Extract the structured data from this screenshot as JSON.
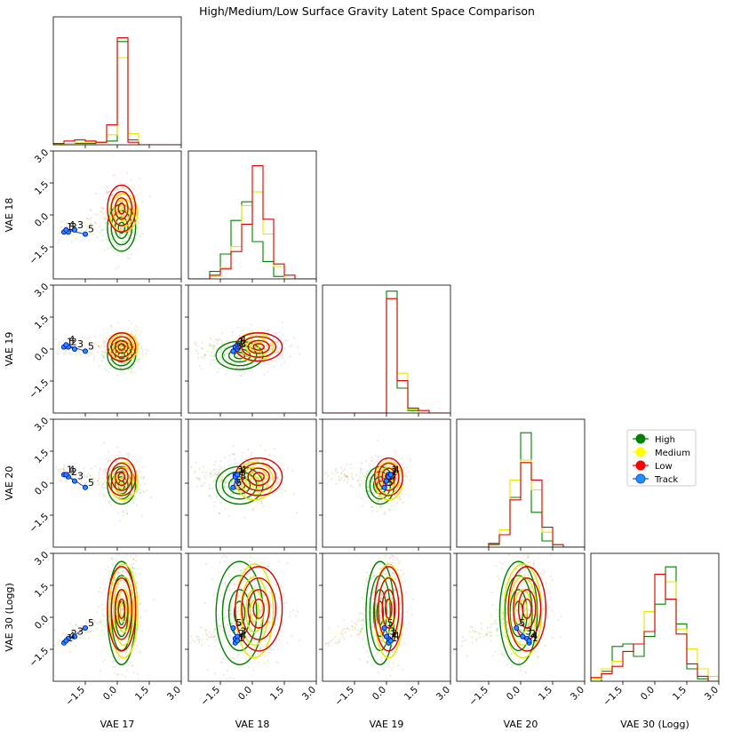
{
  "chart_data": {
    "type": "corner",
    "title": "High/Medium/Low Surface Gravity Latent Space Comparison",
    "variables": [
      "VAE 17",
      "VAE 18",
      "VAE 19",
      "VAE 20",
      "VAE 30 (Logg)"
    ],
    "axis_range": [
      -3,
      3
    ],
    "ticks": [
      -1.5,
      0.0,
      1.5,
      3.0
    ],
    "tick_labels": [
      "−1.5",
      "0.0",
      "1.5",
      "3.0"
    ],
    "y_ticks": [
      3.0,
      1.5,
      0.0,
      -1.5
    ],
    "y_tick_labels": [
      "3.0",
      "1.5",
      "0.0",
      "−1.5"
    ],
    "legend_position": "right, beside 4th row",
    "series": [
      {
        "name": "High",
        "color": "#008000"
      },
      {
        "name": "Medium",
        "color": "#ffff00"
      },
      {
        "name": "Low",
        "color": "#ff0000"
      },
      {
        "name": "Track",
        "color": "#1e90ff"
      }
    ],
    "cluster_centers": {
      "High": [
        0.2,
        -0.6,
        -0.3,
        -0.1,
        0.2
      ],
      "Medium": [
        0.3,
        0.1,
        0.1,
        0.1,
        0.3
      ],
      "Low": [
        0.2,
        0.3,
        0.1,
        0.3,
        0.4
      ]
    },
    "cluster_spreads": {
      "High": [
        0.3,
        0.5,
        0.3,
        0.4,
        1.1
      ],
      "Medium": [
        0.3,
        0.4,
        0.3,
        0.4,
        1.0
      ],
      "Low": [
        0.3,
        0.5,
        0.3,
        0.4,
        0.9
      ]
    },
    "track_points": {
      "labels": [
        "1",
        "2",
        "3",
        "4",
        "5"
      ],
      "values": [
        [
          -2.5,
          -0.8,
          0.1,
          0.4,
          -1.2
        ],
        [
          -2.3,
          -0.8,
          0.1,
          0.3,
          -1.0
        ],
        [
          -2.0,
          -0.7,
          0.0,
          0.1,
          -0.9
        ],
        [
          -2.4,
          -0.7,
          0.2,
          0.4,
          -1.1
        ],
        [
          -1.5,
          -0.9,
          -0.1,
          -0.2,
          -0.5
        ]
      ]
    },
    "histograms": {
      "bins": [
        -3.0,
        -2.5,
        -2.0,
        -1.5,
        -1.0,
        -0.5,
        0.0,
        0.5,
        1.0,
        1.5,
        2.0,
        2.5,
        3.0
      ],
      "VAE 17": {
        "High": [
          0.005,
          0.01,
          0.01,
          0.01,
          0.02,
          0.03,
          0.83,
          0.04,
          0.0,
          0.0,
          0.0,
          0.0
        ],
        "Medium": [
          0.005,
          0.01,
          0.02,
          0.02,
          0.02,
          0.08,
          0.7,
          0.09,
          0.0,
          0.0,
          0.0,
          0.0
        ],
        "Low": [
          0.01,
          0.03,
          0.04,
          0.03,
          0.02,
          0.16,
          0.86,
          0.02,
          0.0,
          0.0,
          0.0,
          0.0
        ]
      },
      "VAE 18": {
        "High": [
          0.0,
          0.0,
          0.06,
          0.2,
          0.47,
          0.62,
          0.3,
          0.14,
          0.02,
          0.0,
          0.0,
          0.0
        ],
        "Medium": [
          0.0,
          0.0,
          0.02,
          0.09,
          0.26,
          0.59,
          0.7,
          0.36,
          0.1,
          0.0,
          0.0,
          0.0
        ],
        "Low": [
          0.0,
          0.0,
          0.03,
          0.08,
          0.22,
          0.44,
          0.91,
          0.48,
          0.12,
          0.03,
          0.0,
          0.0
        ]
      },
      "VAE 19": {
        "High": [
          0.0,
          0.0,
          0.0,
          0.0,
          0.0,
          0.0,
          0.98,
          0.2,
          0.02,
          0.0,
          0.0,
          0.0
        ],
        "Medium": [
          0.0,
          0.0,
          0.0,
          0.0,
          0.0,
          0.0,
          0.92,
          0.32,
          0.03,
          0.0,
          0.0,
          0.0
        ],
        "Low": [
          0.0,
          0.0,
          0.0,
          0.0,
          0.0,
          0.0,
          0.92,
          0.26,
          0.04,
          0.02,
          0.0,
          0.0
        ]
      },
      "VAE 20": {
        "High": [
          0.0,
          0.0,
          0.0,
          0.02,
          0.1,
          0.4,
          0.92,
          0.28,
          0.05,
          0.0,
          0.0,
          0.0
        ],
        "Medium": [
          0.0,
          0.0,
          0.0,
          0.03,
          0.14,
          0.54,
          0.7,
          0.46,
          0.12,
          0.02,
          0.0,
          0.0
        ],
        "Low": [
          0.0,
          0.0,
          0.0,
          0.03,
          0.1,
          0.38,
          0.68,
          0.54,
          0.16,
          0.02,
          0.0,
          0.0
        ]
      },
      "VAE 30 (Logg)": {
        "High": [
          0.0,
          0.08,
          0.28,
          0.3,
          0.2,
          0.36,
          0.62,
          0.92,
          0.46,
          0.1,
          0.02,
          0.0
        ],
        "Medium": [
          0.02,
          0.1,
          0.16,
          0.24,
          0.3,
          0.56,
          0.86,
          0.8,
          0.42,
          0.26,
          0.1,
          0.04
        ],
        "Low": [
          0.03,
          0.06,
          0.12,
          0.24,
          0.3,
          0.4,
          0.86,
          0.66,
          0.38,
          0.14,
          0.04,
          0.0
        ]
      }
    }
  }
}
